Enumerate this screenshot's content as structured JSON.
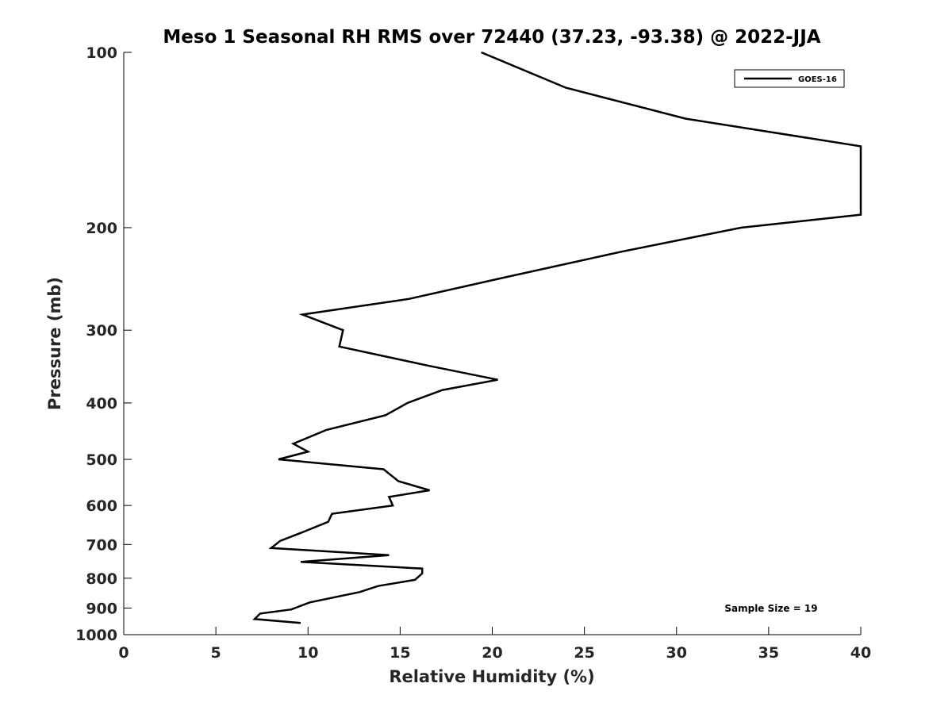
{
  "chart_data": {
    "type": "line",
    "title": "Meso 1 Seasonal RH RMS over 72440 (37.23, -93.38) @ 2022-JJA",
    "xlabel": "Relative Humidity (%)",
    "ylabel": "Pressure (mb)",
    "xlim": [
      0,
      40
    ],
    "ylim": [
      1000,
      100
    ],
    "y_scale": "log",
    "y_reversed": true,
    "x_ticks": [
      0,
      5,
      10,
      15,
      20,
      25,
      30,
      35,
      40
    ],
    "y_ticks": [
      100,
      200,
      300,
      400,
      500,
      600,
      700,
      800,
      900,
      1000
    ],
    "grid": false,
    "legend_position": "top-right",
    "series": [
      {
        "name": "GOES-16",
        "color": "#000000",
        "x": [
          19.4,
          24.0,
          30.5,
          40.0,
          40.0,
          33.5,
          27.0,
          20.3,
          15.5,
          9.7,
          11.9,
          11.7,
          16.5,
          20.3,
          17.3,
          15.4,
          14.2,
          11.0,
          9.2,
          10.0,
          8.4,
          14.1,
          14.9,
          16.6,
          14.4,
          14.6,
          11.3,
          11.1,
          9.8,
          8.5,
          8.0,
          14.4,
          9.6,
          16.2,
          16.2,
          15.8,
          13.8,
          12.8,
          10.1,
          9.1,
          7.4,
          7.1,
          9.6
        ],
        "y": [
          100,
          115,
          130,
          145,
          190,
          200,
          220,
          245,
          265,
          282,
          300,
          320,
          345,
          365,
          380,
          400,
          420,
          445,
          470,
          485,
          500,
          520,
          545,
          565,
          580,
          600,
          620,
          640,
          665,
          690,
          710,
          730,
          750,
          770,
          785,
          805,
          825,
          845,
          880,
          905,
          920,
          940,
          955
        ]
      }
    ],
    "legend_entries": [
      "GOES-16"
    ],
    "annotation": "Sample Size = 19"
  }
}
